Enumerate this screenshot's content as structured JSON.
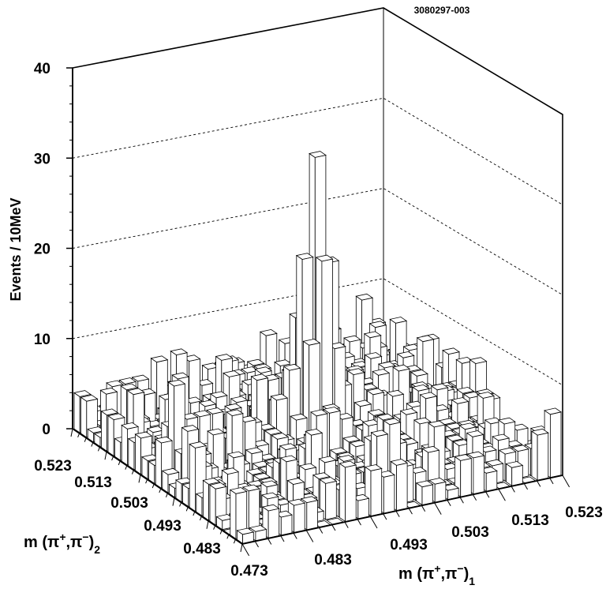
{
  "figure_id": "3080297-003",
  "chart_data": {
    "type": "bar3d",
    "title": "",
    "zlabel": "Events / 10MeV",
    "xlabel": {
      "base": "m (π",
      "sup1": "+",
      "mid": ",π",
      "sup2": "−",
      "close": ")",
      "sub": "1"
    },
    "ylabel": {
      "base": "m (π",
      "sup1": "+",
      "mid": ",π",
      "sup2": "−",
      "close": ")",
      "sub": "2"
    },
    "zlim": [
      0,
      40
    ],
    "zticks": [
      "0",
      "10",
      "20",
      "30",
      "40"
    ],
    "xlim": [
      0.473,
      0.523
    ],
    "ylim": [
      0.473,
      0.523
    ],
    "xticks": [
      "0.483",
      "0.493",
      "0.503",
      "0.513",
      "0.523"
    ],
    "yticks": [
      "0.473",
      "0.483",
      "0.493",
      "0.503",
      "0.513",
      "0.523"
    ],
    "grid": "dashed at z = 10, 20, 30 on back walls",
    "bins_per_axis": 25,
    "peak": {
      "x": 0.498,
      "y": 0.498,
      "z": 32
    },
    "background_level": "0–8 events per bin",
    "description_values": "2D histogram of dipion invariant masses with a sharp peak near 0.498 GeV in both axes"
  }
}
